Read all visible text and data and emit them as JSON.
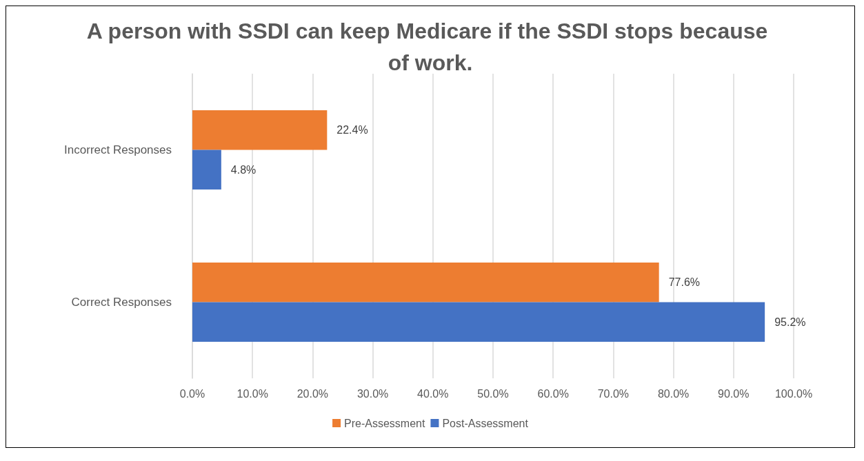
{
  "chart_data": {
    "type": "bar",
    "orientation": "horizontal",
    "title": "A person with SSDI can keep Medicare if the SSDI stops because of work.",
    "categories": [
      "Incorrect Responses",
      "Correct Responses"
    ],
    "series": [
      {
        "name": "Pre-Assessment",
        "color": "#ed7d31",
        "values": [
          22.4,
          77.6
        ],
        "value_labels": [
          "22.4%",
          "77.6%"
        ]
      },
      {
        "name": "Post-Assessment",
        "color": "#4472c4",
        "values": [
          4.8,
          95.2
        ],
        "value_labels": [
          "4.8%",
          "95.2%"
        ]
      }
    ],
    "xlim": [
      0,
      100
    ],
    "xticks": [
      {
        "value": 0,
        "label": "0.0%"
      },
      {
        "value": 10,
        "label": "10.0%"
      },
      {
        "value": 20,
        "label": "20.0%"
      },
      {
        "value": 30,
        "label": "30.0%"
      },
      {
        "value": 40,
        "label": "40.0%"
      },
      {
        "value": 50,
        "label": "50.0%"
      },
      {
        "value": 60,
        "label": "60.0%"
      },
      {
        "value": 70,
        "label": "70.0%"
      },
      {
        "value": 80,
        "label": "80.0%"
      },
      {
        "value": 90,
        "label": "90.0%"
      },
      {
        "value": 100,
        "label": "100.0%"
      }
    ],
    "grid": "x",
    "legend": "bottom"
  }
}
